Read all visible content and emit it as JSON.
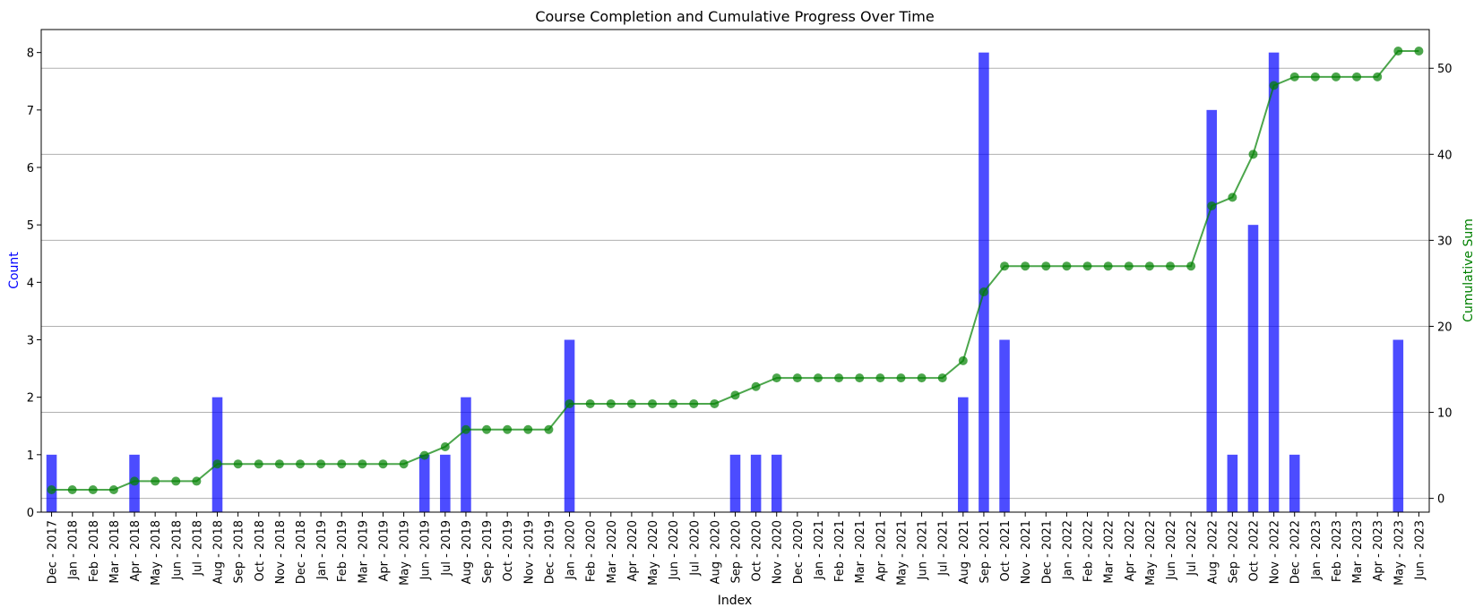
{
  "chart_data": {
    "type": "bar",
    "title": "Course Completion and Cumulative Progress Over Time",
    "xlabel": "Index",
    "ylabel": "Count",
    "y2label": "Cumulative Sum",
    "ylim": [
      0,
      8.4
    ],
    "y2lim": [
      -1.6,
      54.5
    ],
    "yticks": [
      0,
      1,
      2,
      3,
      4,
      5,
      6,
      7,
      8
    ],
    "y2ticks": [
      0,
      10,
      20,
      30,
      40,
      50
    ],
    "grid": "horizontal lines on secondary axis",
    "colors": {
      "bars": "#0000ff",
      "line": "#008000",
      "count_label": "#0000ff",
      "cumsum_label": "#008000"
    },
    "categories": [
      "Dec - 2017",
      "Jan - 2018",
      "Feb - 2018",
      "Mar - 2018",
      "Apr - 2018",
      "May - 2018",
      "Jun - 2018",
      "Jul - 2018",
      "Aug - 2018",
      "Sep - 2018",
      "Oct - 2018",
      "Nov - 2018",
      "Dec - 2018",
      "Jan - 2019",
      "Feb - 2019",
      "Mar - 2019",
      "Apr - 2019",
      "May - 2019",
      "Jun - 2019",
      "Jul - 2019",
      "Aug - 2019",
      "Sep - 2019",
      "Oct - 2019",
      "Nov - 2019",
      "Dec - 2019",
      "Jan - 2020",
      "Feb - 2020",
      "Mar - 2020",
      "Apr - 2020",
      "May - 2020",
      "Jun - 2020",
      "Jul - 2020",
      "Aug - 2020",
      "Sep - 2020",
      "Oct - 2020",
      "Nov - 2020",
      "Dec - 2020",
      "Jan - 2021",
      "Feb - 2021",
      "Mar - 2021",
      "Apr - 2021",
      "May - 2021",
      "Jun - 2021",
      "Jul - 2021",
      "Aug - 2021",
      "Sep - 2021",
      "Oct - 2021",
      "Nov - 2021",
      "Dec - 2021",
      "Jan - 2022",
      "Feb - 2022",
      "Mar - 2022",
      "Apr - 2022",
      "May - 2022",
      "Jun - 2022",
      "Jul - 2022",
      "Aug - 2022",
      "Sep - 2022",
      "Oct - 2022",
      "Nov - 2022",
      "Dec - 2022",
      "Jan - 2023",
      "Feb - 2023",
      "Mar - 2023",
      "Apr - 2023",
      "May - 2023",
      "Jun - 2023"
    ],
    "series": [
      {
        "values": [
          1,
          0,
          0,
          0,
          1,
          0,
          0,
          0,
          2,
          0,
          0,
          0,
          0,
          0,
          0,
          0,
          0,
          0,
          1,
          1,
          2,
          0,
          0,
          0,
          0,
          3,
          0,
          0,
          0,
          0,
          0,
          0,
          0,
          1,
          1,
          1,
          0,
          0,
          0,
          0,
          0,
          0,
          0,
          0,
          2,
          8,
          3,
          0,
          0,
          0,
          0,
          0,
          0,
          0,
          0,
          0,
          7,
          1,
          5,
          8,
          1,
          0,
          0,
          0,
          0,
          3,
          0
        ]
      },
      {
        "values": [
          1,
          1,
          1,
          1,
          2,
          2,
          2,
          2,
          4,
          4,
          4,
          4,
          4,
          4,
          4,
          4,
          4,
          4,
          5,
          6,
          8,
          8,
          8,
          8,
          8,
          11,
          11,
          11,
          11,
          11,
          11,
          11,
          11,
          12,
          13,
          14,
          14,
          14,
          14,
          14,
          14,
          14,
          14,
          14,
          16,
          24,
          27,
          27,
          27,
          27,
          27,
          27,
          27,
          27,
          27,
          27,
          34,
          35,
          40,
          48,
          49,
          49,
          49,
          49,
          49,
          52,
          52
        ]
      }
    ]
  }
}
